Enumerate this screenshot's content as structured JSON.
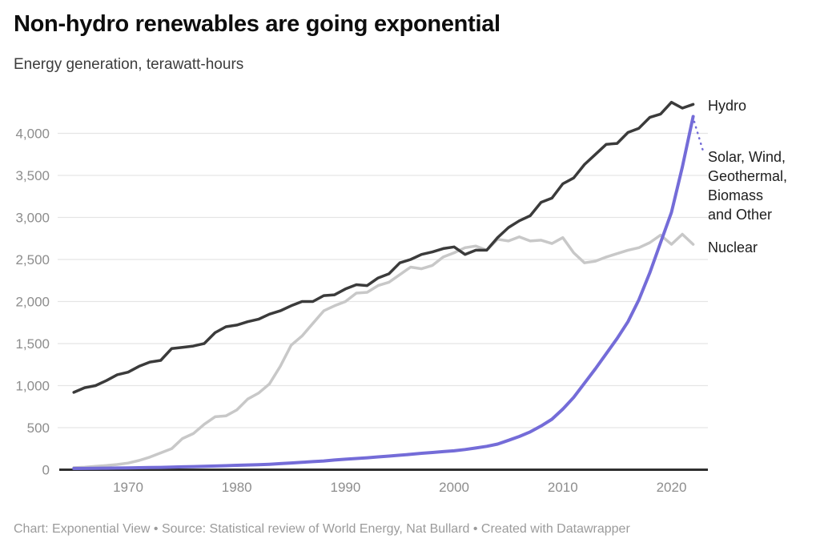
{
  "header": {
    "title": "Non-hydro renewables are going exponential",
    "subtitle": "Energy generation, terawatt-hours"
  },
  "footer": {
    "text": "Chart: Exponential View • Source: Statistical review of World Energy, Nat Bullard • Created with Datawrapper"
  },
  "labels": {
    "hydro": "Hydro",
    "swgbo_lines": [
      "Solar, Wind,",
      "Geothermal,",
      "Biomass",
      "and Other"
    ],
    "nuclear": "Nuclear"
  },
  "colors": {
    "hydro": "#3b3b3b",
    "nuclear": "#c8c8c8",
    "renewables": "#746cd8",
    "grid": "#e5e5e5",
    "axis": "#2f2f2f",
    "tick_text": "#8d8d8d"
  },
  "chart_data": {
    "type": "line",
    "title": "Non-hydro renewables are going exponential",
    "ylabel": "Energy generation, terawatt-hours",
    "xlabel": "",
    "ylim": [
      0,
      4500
    ],
    "grid": "horizontal",
    "legend_position": "right-direct-labels",
    "x": [
      1965,
      1966,
      1967,
      1968,
      1969,
      1970,
      1971,
      1972,
      1973,
      1974,
      1975,
      1976,
      1977,
      1978,
      1979,
      1980,
      1981,
      1982,
      1983,
      1984,
      1985,
      1986,
      1987,
      1988,
      1989,
      1990,
      1991,
      1992,
      1993,
      1994,
      1995,
      1996,
      1997,
      1998,
      1999,
      2000,
      2001,
      2002,
      2003,
      2004,
      2005,
      2006,
      2007,
      2008,
      2009,
      2010,
      2011,
      2012,
      2013,
      2014,
      2015,
      2016,
      2017,
      2018,
      2019,
      2020,
      2021,
      2022
    ],
    "x_ticks": [
      {
        "value": 1970,
        "label": "1970"
      },
      {
        "value": 1980,
        "label": "1980"
      },
      {
        "value": 1990,
        "label": "1990"
      },
      {
        "value": 2000,
        "label": "2000"
      },
      {
        "value": 2010,
        "label": "2010"
      },
      {
        "value": 2020,
        "label": "2020"
      }
    ],
    "y_ticks": [
      {
        "value": 0,
        "label": "0"
      },
      {
        "value": 500,
        "label": "500"
      },
      {
        "value": 1000,
        "label": "1,000"
      },
      {
        "value": 1500,
        "label": "1,500"
      },
      {
        "value": 2000,
        "label": "2,000"
      },
      {
        "value": 2500,
        "label": "2,500"
      },
      {
        "value": 3000,
        "label": "3,000"
      },
      {
        "value": 3500,
        "label": "3,500"
      },
      {
        "value": 4000,
        "label": "4,000"
      }
    ],
    "series": [
      {
        "name": "Nuclear",
        "color_key": "nuclear",
        "stroke_width": 3.5,
        "values": [
          25,
          30,
          40,
          50,
          62,
          79,
          110,
          150,
          200,
          250,
          370,
          430,
          540,
          630,
          640,
          710,
          840,
          910,
          1020,
          1230,
          1480,
          1590,
          1740,
          1890,
          1950,
          2000,
          2100,
          2110,
          2190,
          2230,
          2320,
          2410,
          2390,
          2430,
          2530,
          2580,
          2640,
          2660,
          2610,
          2740,
          2720,
          2770,
          2720,
          2730,
          2690,
          2760,
          2580,
          2460,
          2480,
          2530,
          2570,
          2610,
          2640,
          2700,
          2790,
          2680,
          2800,
          2680
        ]
      },
      {
        "name": "Hydro",
        "color_key": "hydro",
        "stroke_width": 3.5,
        "values": [
          920,
          975,
          1000,
          1060,
          1130,
          1160,
          1230,
          1280,
          1300,
          1440,
          1455,
          1470,
          1500,
          1630,
          1700,
          1720,
          1760,
          1790,
          1850,
          1890,
          1950,
          2000,
          2000,
          2070,
          2080,
          2150,
          2200,
          2190,
          2280,
          2330,
          2460,
          2500,
          2560,
          2590,
          2630,
          2650,
          2560,
          2610,
          2610,
          2760,
          2880,
          2960,
          3020,
          3180,
          3230,
          3400,
          3470,
          3630,
          3750,
          3870,
          3880,
          4010,
          4060,
          4190,
          4230,
          4370,
          4300,
          4345
        ]
      },
      {
        "name": "Solar, Wind, Geothermal, Biomass and Other",
        "color_key": "renewables",
        "stroke_width": 4,
        "values": [
          14,
          15,
          16,
          18,
          20,
          22,
          24,
          26,
          28,
          31,
          34,
          37,
          40,
          44,
          48,
          52,
          56,
          60,
          65,
          72,
          80,
          88,
          96,
          104,
          115,
          125,
          133,
          142,
          152,
          162,
          172,
          183,
          195,
          205,
          215,
          225,
          240,
          258,
          278,
          305,
          350,
          395,
          450,
          520,
          600,
          720,
          860,
          1030,
          1200,
          1380,
          1560,
          1760,
          2020,
          2340,
          2700,
          3060,
          3600,
          4200
        ]
      }
    ]
  }
}
